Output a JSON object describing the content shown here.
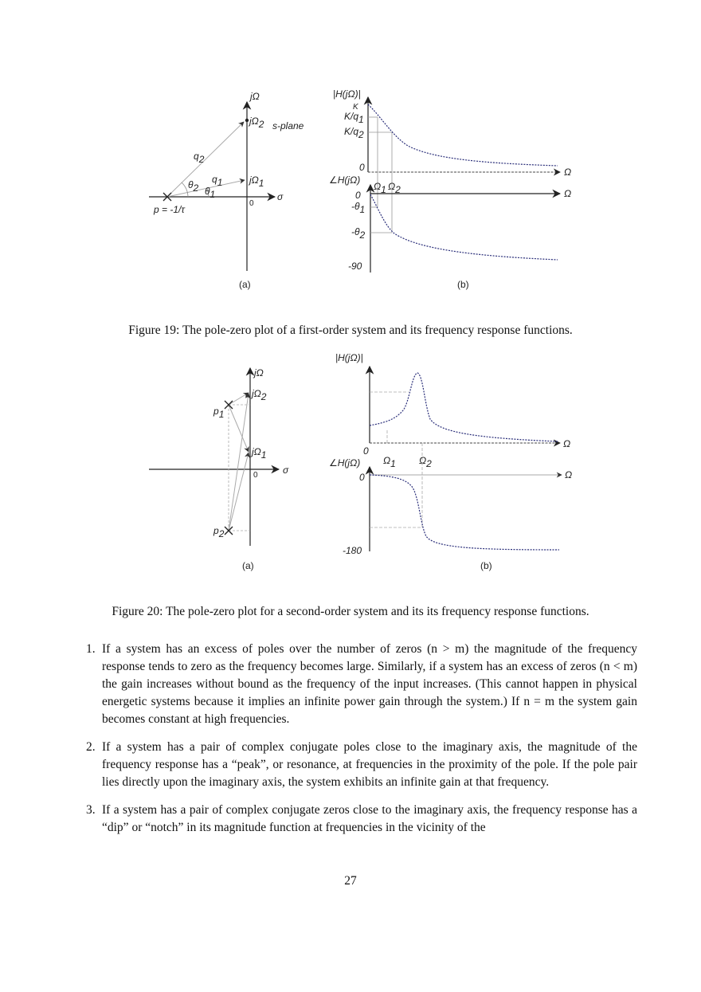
{
  "figure19": {
    "caption": "Figure 19: The pole-zero plot of a first-order system and its frequency response functions.",
    "panel_a": {
      "label": "(a)",
      "imag_axis": "jΩ",
      "real_axis": "σ",
      "origin": "0",
      "plane_label": "s-plane",
      "j_omega_1": "jΩ",
      "j_omega_1_sub": "1",
      "j_omega_2": "jΩ",
      "j_omega_2_sub": "2",
      "q1": "q",
      "q1_sub": "1",
      "q2": "q",
      "q2_sub": "2",
      "theta1": "θ",
      "theta1_sub": "1",
      "theta2": "θ",
      "theta2_sub": "2",
      "pole_label": "p = -1/τ"
    },
    "panel_b": {
      "label": "(b)",
      "mag_axis": "|H(jΩ)|",
      "phase_axis": "∠H(jΩ)",
      "freq_axis": "Ω",
      "K": "K",
      "Kq1": "K/q",
      "Kq1_sub": "1",
      "Kq2": "K/q",
      "Kq2_sub": "2",
      "mag_zero": "0",
      "phase_zero": "0",
      "omega1": "Ω",
      "omega1_sub": "1",
      "omega2": "Ω",
      "omega2_sub": "2",
      "neg_theta1": "-θ",
      "neg_theta1_sub": "1",
      "neg_theta2": "-θ",
      "neg_theta2_sub": "2",
      "neg90": "-90"
    }
  },
  "figure20": {
    "caption": "Figure 20: The pole-zero plot for a second-order system and its its frequency response functions.",
    "panel_a": {
      "label": "(a)",
      "imag_axis": "jΩ",
      "real_axis": "σ",
      "origin": "0",
      "j_omega_1": "jΩ",
      "j_omega_1_sub": "1",
      "j_omega_2": "jΩ",
      "j_omega_2_sub": "2",
      "p1": "p",
      "p1_sub": "1",
      "p2": "p",
      "p2_sub": "2"
    },
    "panel_b": {
      "label": "(b)",
      "mag_axis": "|H(jΩ)|",
      "phase_axis": "∠H(jΩ)",
      "freq_axis": "Ω",
      "mag_zero": "0",
      "phase_zero": "0",
      "omega1": "Ω",
      "omega1_sub": "1",
      "omega2": "Ω",
      "omega2_sub": "2",
      "neg180": "-180"
    }
  },
  "list_items": [
    {
      "number": "1.",
      "text": "If a system has an excess of poles over the number of zeros (n > m) the magnitude of the frequency response tends to zero as the frequency becomes large. Similarly, if a system has an excess of zeros (n < m) the gain increases without bound as the frequency of the input increases. (This cannot happen in physical energetic systems because it implies an infinite power gain through the system.) If n = m the system gain becomes constant at high frequencies."
    },
    {
      "number": "2.",
      "text": "If a system has a pair of complex conjugate poles close to the imaginary axis, the magnitude of the frequency response has a “peak”, or resonance, at frequencies in the proximity of the pole. If the pole pair lies directly upon the imaginary axis, the system exhibits an infinite gain at that frequency."
    },
    {
      "number": "3.",
      "text": "If a system has a pair of complex conjugate zeros close to the imaginary axis, the frequency response has a “dip” or “notch” in its magnitude function at frequencies in the vicinity of the"
    }
  ],
  "page_number": "27"
}
